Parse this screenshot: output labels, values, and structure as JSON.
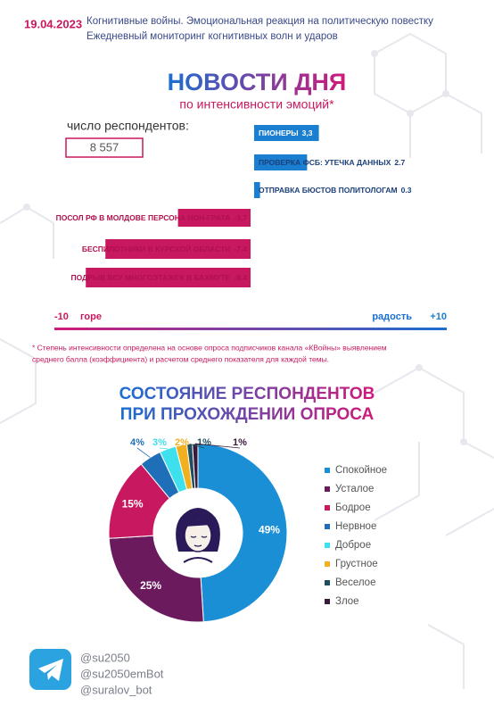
{
  "header": {
    "date": "19.04.2023",
    "line1": "Когнитивные войны. Эмоциональная реакция на политическую повестку",
    "line2": "Ежедневный мониторинг когнитивных волн и ударов"
  },
  "respondents": {
    "label": "число респондентов:",
    "value": "8 557"
  },
  "chart_data": [
    {
      "type": "bar",
      "title": "НОВОСТИ ДНЯ",
      "subtitle": "по интенсивности эмоций*",
      "categories": [
        "ПИОНЕРЫ",
        "ПРОВЕРКА ФСБ: УТЕЧКА ДАННЫХ",
        "ОТПРАВКА БЮСТОВ ПОЛИТОЛОГАМ",
        "ПОСОЛ РФ В МОЛДОВЕ ПЕРСОНА НОН-ГРАТА",
        "БЕСПИЛОТНИКИ В КУРСКОЙ ОБЛАСТИ",
        "ПОДРЫВ ВСУ МНОГОЭТАЖЕК В БАХМУТЕ"
      ],
      "values": [
        3.3,
        2.7,
        0.3,
        -3.7,
        -7.4,
        -8.4
      ],
      "value_labels": [
        "3,3",
        "2.7",
        "0.3",
        "-3,7",
        "-7.4",
        "-8.4"
      ],
      "positive_color": "#1a7fd0",
      "negative_color": "#c8185f",
      "xlim": [
        -10,
        10
      ],
      "xticks": [
        -10,
        {
          "value": 10,
          "label": "+10"
        }
      ],
      "xlabel_left": "горе",
      "xlabel_right": "радость",
      "footnote": [
        "* Степень интенсивности определена на основе опроса подписчиков канала «КВойны» выявлением",
        "среднего балла (коэффициента) и расчетом среднего показателя для каждой темы."
      ]
    },
    {
      "type": "pie",
      "title": [
        "СОСТОЯНИЕ РЕСПОНДЕНТОВ",
        "ПРИ ПРОХОЖДЕНИИ ОПРОСА"
      ],
      "categories": [
        "Спокойное",
        "Усталое",
        "Бодрое",
        "Нервное",
        "Доброе",
        "Грустное",
        "Веселое",
        "Злое"
      ],
      "values": [
        49,
        25,
        15,
        4,
        3,
        2,
        1,
        1
      ],
      "value_labels": [
        "49%",
        "25%",
        "15%",
        "4%",
        "3%",
        "2%",
        "1%",
        "1%"
      ],
      "colors": [
        "#1a8fd6",
        "#6b1a5e",
        "#c8185f",
        "#1e6fb8",
        "#3fe0ee",
        "#f0b020",
        "#1f4f5f",
        "#3a1a3a"
      ]
    }
  ],
  "contacts": [
    "@su2050",
    "@su2050emBot",
    "@suralov_bot"
  ]
}
